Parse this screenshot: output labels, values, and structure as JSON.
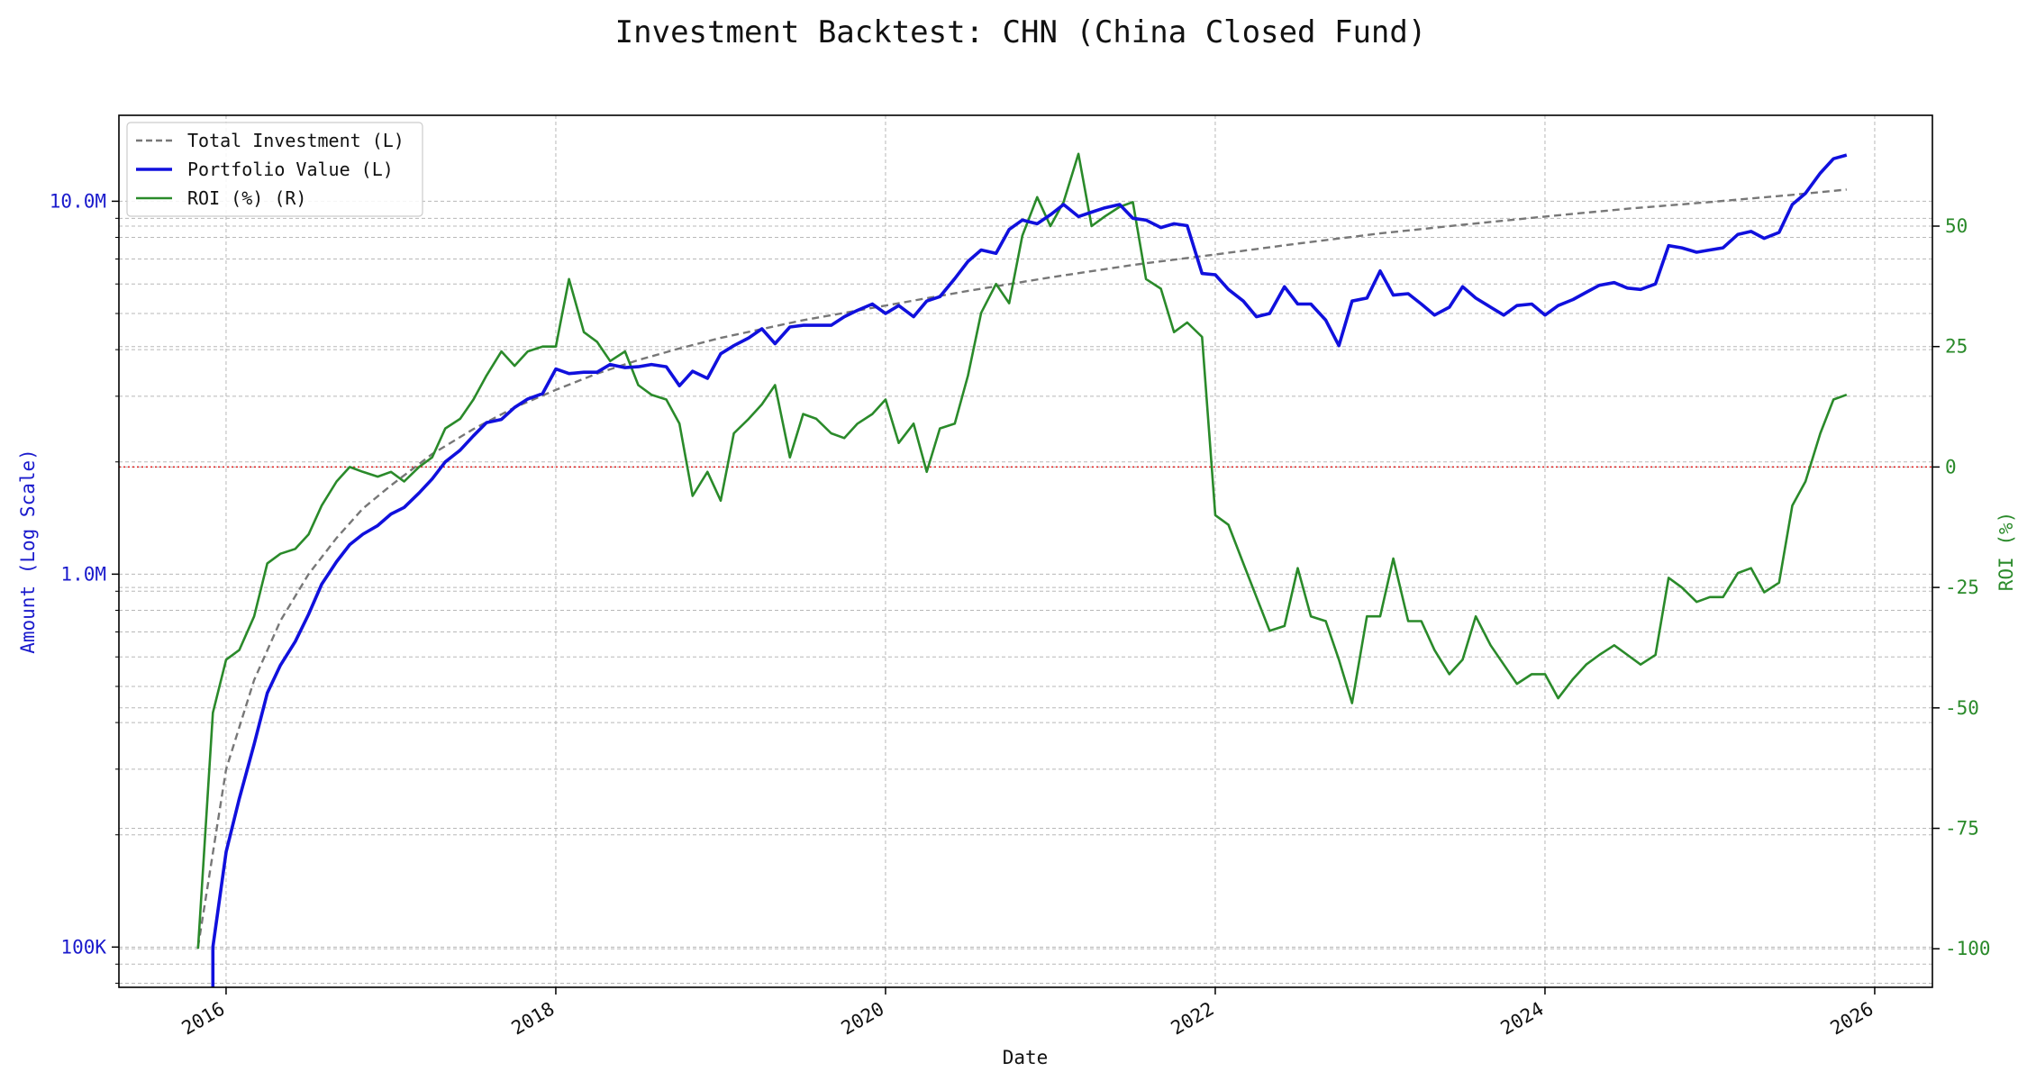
{
  "chart_data": {
    "type": "line",
    "title": "Investment Backtest: CHN (China Closed Fund)",
    "xlabel": "Date",
    "ylabel_left": "Amount (Log Scale)",
    "ylabel_right": "ROI (%)",
    "xlim": [
      2015.35,
      2026.35
    ],
    "ylim_left": [
      78000,
      17000000
    ],
    "yscale_left": "log",
    "ylim_right": [
      -108,
      73
    ],
    "x_ticks": [
      2016,
      2018,
      2020,
      2022,
      2024,
      2026
    ],
    "y_ticks_left": [
      {
        "v": 100000,
        "label": "100K"
      },
      {
        "v": 1000000,
        "label": "1.0M"
      },
      {
        "v": 10000000,
        "label": "10.0M"
      }
    ],
    "y_ticks_right": [
      -100,
      -75,
      -50,
      -25,
      0,
      25,
      50
    ],
    "grid": true,
    "legend_position": "top-left",
    "reference_line": {
      "axis": "right",
      "value": 0,
      "style": "dotted",
      "color": "#e02020"
    },
    "colors": {
      "investment": "#777777",
      "portfolio": "#1010dd",
      "roi": "#2a8a2a",
      "left_axis": "#1a1acc",
      "right_axis": "#2a8a2a"
    },
    "series": [
      {
        "name": "Total Investment (L)",
        "axis": "left",
        "style": "dashed",
        "color": "#777777",
        "x": [
          2015.83,
          2016.0,
          2016.17,
          2016.33,
          2016.5,
          2016.67,
          2016.83,
          2017.0,
          2017.25,
          2017.5,
          2017.75,
          2018.0,
          2018.25,
          2018.5,
          2018.75,
          2019.0,
          2019.5,
          2020.0,
          2020.5,
          2021.0,
          2021.5,
          2022.0,
          2022.5,
          2023.0,
          2023.5,
          2024.0,
          2024.5,
          2025.0,
          2025.5,
          2025.83
        ],
        "y": [
          100000,
          300000,
          520000,
          750000,
          1000000,
          1250000,
          1500000,
          1730000,
          2100000,
          2450000,
          2800000,
          3120000,
          3450000,
          3750000,
          4030000,
          4300000,
          4800000,
          5250000,
          5750000,
          6250000,
          6750000,
          7200000,
          7700000,
          8200000,
          8650000,
          9100000,
          9550000,
          9950000,
          10400000,
          10750000
        ]
      },
      {
        "name": "Portfolio Value (L)",
        "axis": "left",
        "style": "solid",
        "color": "#1010dd",
        "x": [
          2015.92,
          2015.92,
          2016.0,
          2016.08,
          2016.17,
          2016.25,
          2016.33,
          2016.42,
          2016.5,
          2016.58,
          2016.67,
          2016.75,
          2016.83,
          2016.92,
          2017.0,
          2017.08,
          2017.17,
          2017.25,
          2017.33,
          2017.42,
          2017.5,
          2017.58,
          2017.67,
          2017.75,
          2017.83,
          2017.92,
          2018.0,
          2018.08,
          2018.17,
          2018.25,
          2018.33,
          2018.42,
          2018.5,
          2018.58,
          2018.67,
          2018.75,
          2018.83,
          2018.92,
          2019.0,
          2019.08,
          2019.17,
          2019.25,
          2019.33,
          2019.42,
          2019.5,
          2019.58,
          2019.67,
          2019.75,
          2019.83,
          2019.92,
          2020.0,
          2020.08,
          2020.17,
          2020.25,
          2020.33,
          2020.42,
          2020.5,
          2020.58,
          2020.67,
          2020.75,
          2020.83,
          2020.92,
          2021.0,
          2021.08,
          2021.17,
          2021.25,
          2021.33,
          2021.42,
          2021.5,
          2021.58,
          2021.67,
          2021.75,
          2021.83,
          2021.92,
          2022.0,
          2022.08,
          2022.17,
          2022.25,
          2022.33,
          2022.42,
          2022.5,
          2022.58,
          2022.67,
          2022.75,
          2022.83,
          2022.92,
          2023.0,
          2023.08,
          2023.17,
          2023.25,
          2023.33,
          2023.42,
          2023.5,
          2023.58,
          2023.67,
          2023.75,
          2023.83,
          2023.92,
          2024.0,
          2024.08,
          2024.17,
          2024.25,
          2024.33,
          2024.42,
          2024.5,
          2024.58,
          2024.67,
          2024.75,
          2024.83,
          2024.92,
          2025.0,
          2025.08,
          2025.17,
          2025.25,
          2025.33,
          2025.42,
          2025.5,
          2025.58,
          2025.67,
          2025.75,
          2025.83
        ],
        "y": [
          75000,
          100000,
          180000,
          250000,
          350000,
          480000,
          570000,
          660000,
          780000,
          940000,
          1080000,
          1200000,
          1280000,
          1350000,
          1450000,
          1510000,
          1650000,
          1800000,
          2000000,
          2150000,
          2350000,
          2550000,
          2600000,
          2800000,
          2950000,
          3050000,
          3550000,
          3450000,
          3480000,
          3480000,
          3650000,
          3580000,
          3600000,
          3650000,
          3600000,
          3200000,
          3500000,
          3350000,
          3900000,
          4100000,
          4300000,
          4550000,
          4150000,
          4600000,
          4650000,
          4650000,
          4650000,
          4900000,
          5100000,
          5300000,
          5000000,
          5250000,
          4900000,
          5400000,
          5550000,
          6200000,
          6900000,
          7400000,
          7250000,
          8400000,
          8900000,
          8700000,
          9200000,
          9800000,
          9100000,
          9350000,
          9600000,
          9800000,
          9000000,
          8900000,
          8500000,
          8700000,
          8600000,
          6400000,
          6350000,
          5800000,
          5400000,
          4900000,
          5000000,
          5900000,
          5300000,
          5300000,
          4800000,
          4100000,
          5400000,
          5500000,
          6500000,
          5600000,
          5650000,
          5300000,
          4950000,
          5200000,
          5900000,
          5500000,
          5200000,
          4950000,
          5250000,
          5300000,
          4950000,
          5250000,
          5450000,
          5700000,
          5950000,
          6050000,
          5850000,
          5800000,
          6000000,
          7600000,
          7500000,
          7300000,
          7400000,
          7500000,
          8150000,
          8300000,
          7950000,
          8250000,
          9800000,
          10500000,
          11900000,
          13000000,
          13300000
        ]
      },
      {
        "name": "ROI (%) (R)",
        "axis": "right",
        "style": "solid",
        "color": "#2a8a2a",
        "x": [
          2015.83,
          2015.92,
          2016.0,
          2016.08,
          2016.17,
          2016.25,
          2016.33,
          2016.42,
          2016.5,
          2016.58,
          2016.67,
          2016.75,
          2016.83,
          2016.92,
          2017.0,
          2017.08,
          2017.17,
          2017.25,
          2017.33,
          2017.42,
          2017.5,
          2017.58,
          2017.67,
          2017.75,
          2017.83,
          2017.92,
          2018.0,
          2018.08,
          2018.17,
          2018.25,
          2018.33,
          2018.42,
          2018.5,
          2018.58,
          2018.67,
          2018.75,
          2018.83,
          2018.92,
          2019.0,
          2019.08,
          2019.17,
          2019.25,
          2019.33,
          2019.42,
          2019.5,
          2019.58,
          2019.67,
          2019.75,
          2019.83,
          2019.92,
          2020.0,
          2020.08,
          2020.17,
          2020.25,
          2020.33,
          2020.42,
          2020.5,
          2020.58,
          2020.67,
          2020.75,
          2020.83,
          2020.92,
          2021.0,
          2021.08,
          2021.17,
          2021.25,
          2021.33,
          2021.42,
          2021.5,
          2021.58,
          2021.67,
          2021.75,
          2021.83,
          2021.92,
          2022.0,
          2022.08,
          2022.17,
          2022.25,
          2022.33,
          2022.42,
          2022.5,
          2022.58,
          2022.67,
          2022.75,
          2022.83,
          2022.92,
          2023.0,
          2023.08,
          2023.17,
          2023.25,
          2023.33,
          2023.42,
          2023.5,
          2023.58,
          2023.67,
          2023.75,
          2023.83,
          2023.92,
          2024.0,
          2024.08,
          2024.17,
          2024.25,
          2024.33,
          2024.42,
          2024.5,
          2024.58,
          2024.67,
          2024.75,
          2024.83,
          2024.92,
          2025.0,
          2025.08,
          2025.17,
          2025.25,
          2025.33,
          2025.42,
          2025.5,
          2025.58,
          2025.67,
          2025.75,
          2025.83
        ],
        "y": [
          -100,
          -51,
          -40,
          -38,
          -31,
          -20,
          -18,
          -17,
          -14,
          -8,
          -3,
          0,
          -1,
          -2,
          -1,
          -3,
          0,
          2,
          8,
          10,
          14,
          19,
          24,
          21,
          24,
          25,
          25,
          39,
          28,
          26,
          22,
          24,
          17,
          15,
          14,
          9,
          -6,
          -1,
          -7,
          7,
          10,
          13,
          17,
          2,
          11,
          10,
          7,
          6,
          9,
          11,
          14,
          5,
          9,
          -1,
          8,
          9,
          19,
          32,
          38,
          34,
          48,
          56,
          50,
          55,
          65,
          50,
          52,
          54,
          55,
          39,
          37,
          28,
          30,
          27,
          -10,
          -12,
          -20,
          -27,
          -34,
          -33,
          -21,
          -31,
          -32,
          -40,
          -49,
          -31,
          -31,
          -19,
          -32,
          -32,
          -38,
          -43,
          -40,
          -31,
          -37,
          -41,
          -45,
          -43,
          -43,
          -48,
          -44,
          -41,
          -39,
          -37,
          -39,
          -41,
          -39,
          -23,
          -25,
          -28,
          -27,
          -27,
          -22,
          -21,
          -26,
          -24,
          -8,
          -3,
          7,
          14,
          15
        ]
      }
    ]
  }
}
